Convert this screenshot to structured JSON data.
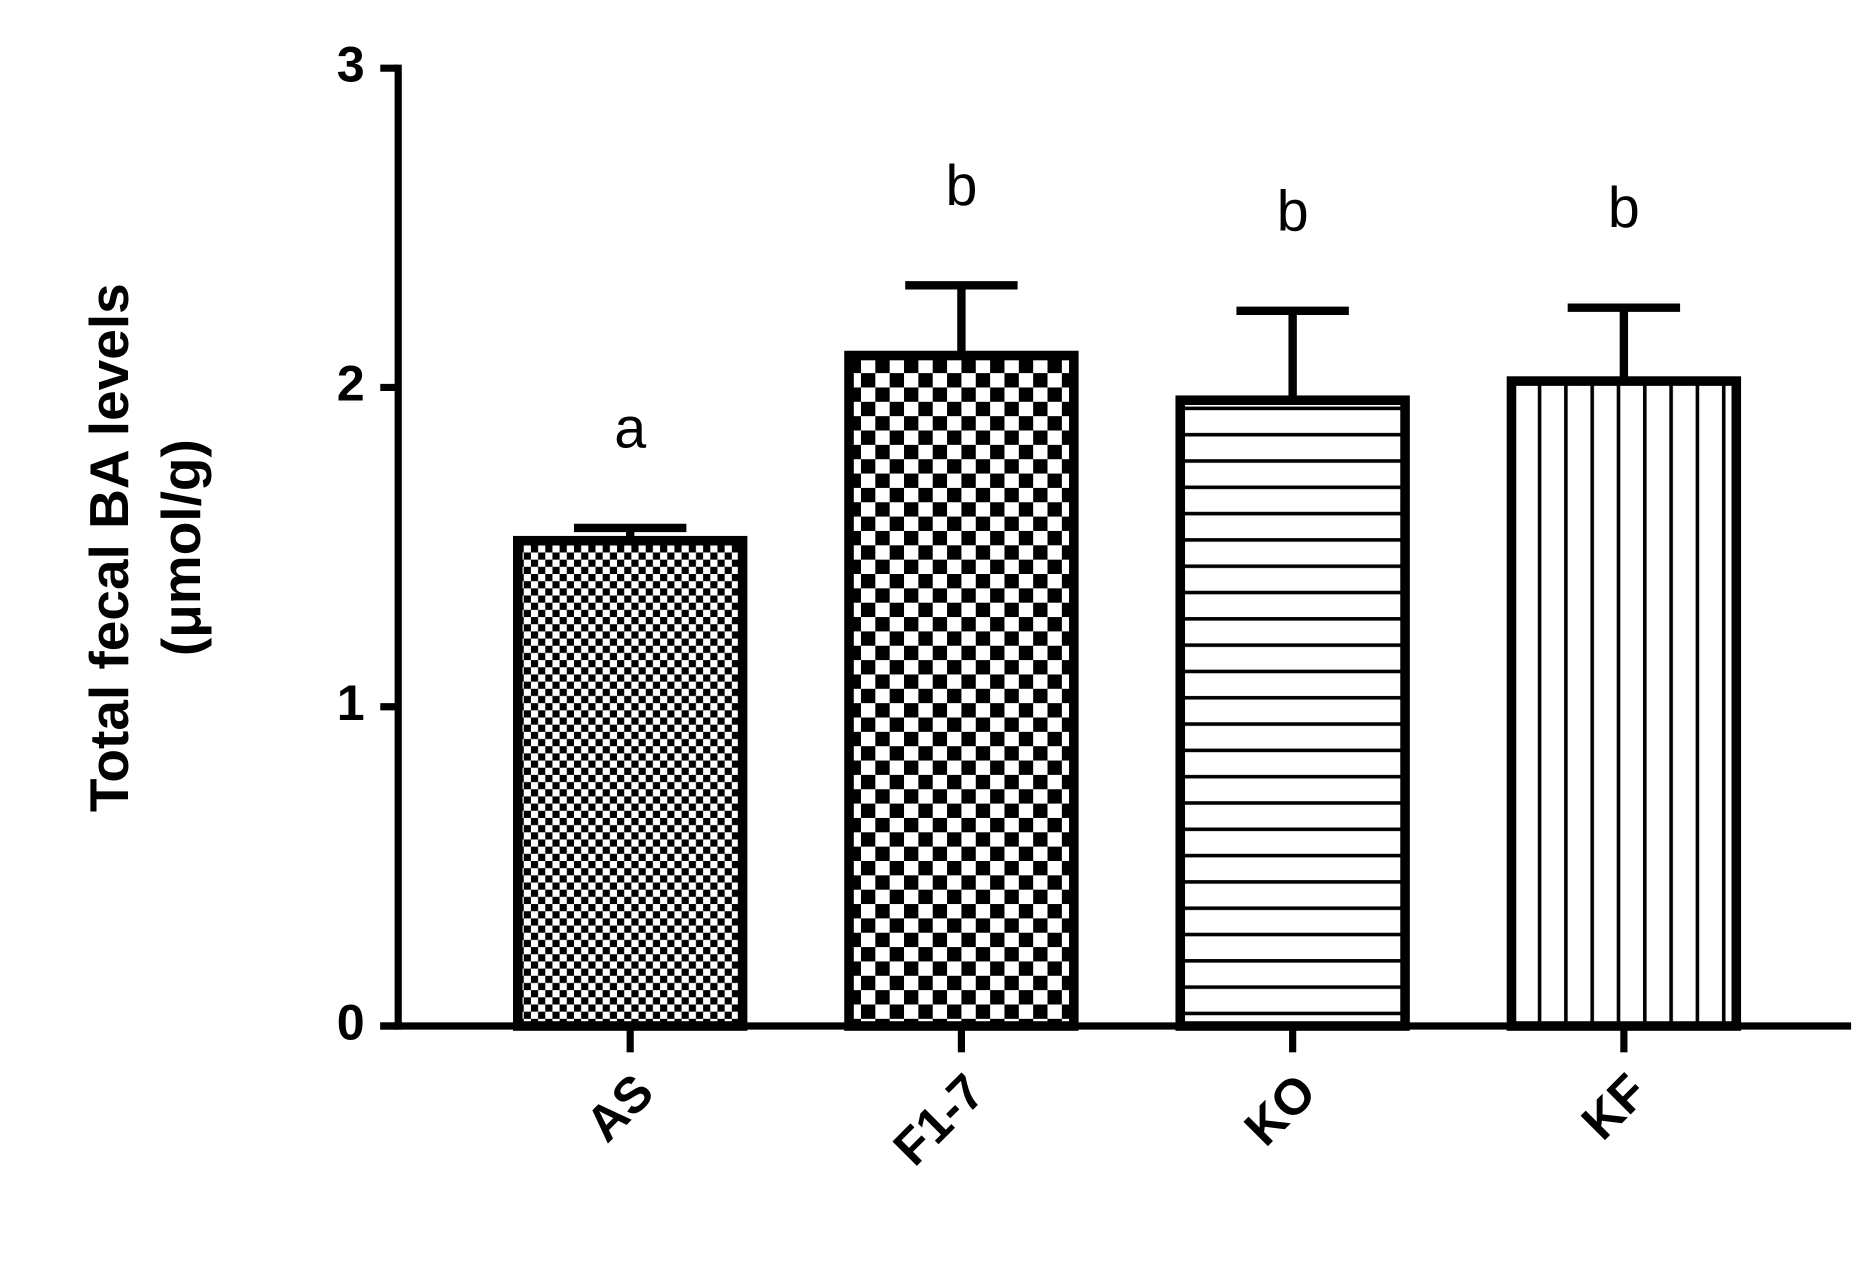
{
  "chart_data": {
    "type": "bar",
    "y_label_lines": [
      "Total fecal BA levels",
      "(μmol/g)"
    ],
    "categories": [
      "AS",
      "F1-7",
      "KO",
      "KF"
    ],
    "values": [
      1.52,
      2.1,
      1.96,
      2.02
    ],
    "errors": [
      0.04,
      0.22,
      0.28,
      0.23
    ],
    "annotations": [
      "a",
      "b",
      "b",
      "b"
    ],
    "patterns": [
      "fine-checker",
      "checker",
      "horizontal-lines",
      "vertical-lines"
    ],
    "color": "#000000",
    "ylim": [
      0,
      3
    ],
    "yticks": [
      0,
      1,
      2,
      3
    ],
    "grid": false
  }
}
